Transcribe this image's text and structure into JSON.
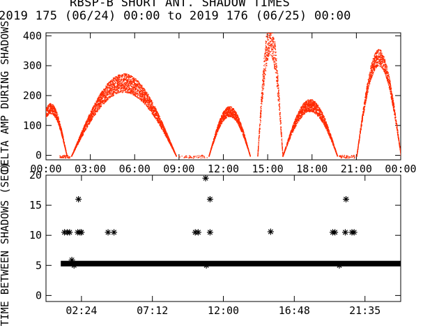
{
  "title": "RBSP-B SHORT ANT. SHADOW TIMES",
  "subtitle": "2019 175 (06/24) 00:00 to 2019 176 (06/25) 00:00",
  "colors": {
    "amp_series": "#ff2a00",
    "axes": "#000000",
    "background": "#ffffff"
  },
  "chart_data": [
    {
      "type": "scatter",
      "title": "",
      "ylabel": "DELTA AMP DURING SHADOWS",
      "xlabel": "",
      "xlim": [
        0,
        24
      ],
      "ylim": [
        -15,
        410
      ],
      "x_tick_labels": [
        "00:00",
        "03:00",
        "06:00",
        "09:00",
        "12:00",
        "15:00",
        "18:00",
        "21:00",
        "00:00"
      ],
      "x_ticks": [
        0,
        3,
        6,
        9,
        12,
        15,
        18,
        21,
        24
      ],
      "y_tick_labels": [
        "0",
        "100",
        "200",
        "300",
        "400"
      ],
      "y_ticks": [
        0,
        100,
        200,
        300,
        400
      ],
      "series": [
        {
          "color": "#ff2a00",
          "arcs": [
            {
              "start": 1.7,
              "end": 8.8,
              "peak": 245,
              "spread": 45
            },
            {
              "start": 11.0,
              "end": 13.8,
              "peak": 150,
              "spread": 25
            },
            {
              "start": 14.3,
              "end": 16.0,
              "peak": 400,
              "spread": 90
            },
            {
              "start": 16.0,
              "end": 19.7,
              "peak": 170,
              "spread": 30
            },
            {
              "start": 21.0,
              "end": 24.0,
              "peak": 330,
              "spread": 40
            },
            {
              "start": -0.8,
              "end": 1.4,
              "peak": 160,
              "spread": 25
            }
          ]
        }
      ]
    },
    {
      "type": "scatter",
      "title": "",
      "ylabel": "TIME BETWEEN SHADOWS (SEC)",
      "xlabel": "",
      "xlim": [
        0,
        24
      ],
      "ylim": [
        -1,
        20
      ],
      "x_tick_labels": [
        "02:24",
        "07:12",
        "12:00",
        "16:48",
        "21:35"
      ],
      "x_ticks": [
        2.4,
        7.2,
        12.0,
        16.8,
        21.583
      ],
      "y_tick_labels": [
        "0",
        "5",
        "10",
        "15",
        "20"
      ],
      "y_ticks": [
        0,
        5,
        10,
        15,
        20
      ],
      "baseline": {
        "y": 5.3,
        "x_start": 1.0,
        "x_end": 24.0
      },
      "points": [
        {
          "x": 1.25,
          "y": 10.5
        },
        {
          "x": 1.45,
          "y": 10.5
        },
        {
          "x": 1.6,
          "y": 10.5
        },
        {
          "x": 1.75,
          "y": 5.9
        },
        {
          "x": 1.9,
          "y": 5.0
        },
        {
          "x": 2.15,
          "y": 10.5
        },
        {
          "x": 2.3,
          "y": 10.5
        },
        {
          "x": 2.4,
          "y": 10.5
        },
        {
          "x": 2.2,
          "y": 16.0
        },
        {
          "x": 4.2,
          "y": 10.5
        },
        {
          "x": 4.6,
          "y": 10.5
        },
        {
          "x": 10.1,
          "y": 10.5
        },
        {
          "x": 10.3,
          "y": 10.5
        },
        {
          "x": 10.85,
          "y": 5.0
        },
        {
          "x": 10.8,
          "y": 19.5
        },
        {
          "x": 11.1,
          "y": 16.0
        },
        {
          "x": 11.1,
          "y": 10.5
        },
        {
          "x": 15.2,
          "y": 10.6
        },
        {
          "x": 19.4,
          "y": 10.5
        },
        {
          "x": 19.55,
          "y": 10.5
        },
        {
          "x": 19.85,
          "y": 5.0
        },
        {
          "x": 20.3,
          "y": 16.0
        },
        {
          "x": 20.25,
          "y": 10.5
        },
        {
          "x": 20.7,
          "y": 10.5
        },
        {
          "x": 20.85,
          "y": 10.5
        }
      ]
    }
  ]
}
